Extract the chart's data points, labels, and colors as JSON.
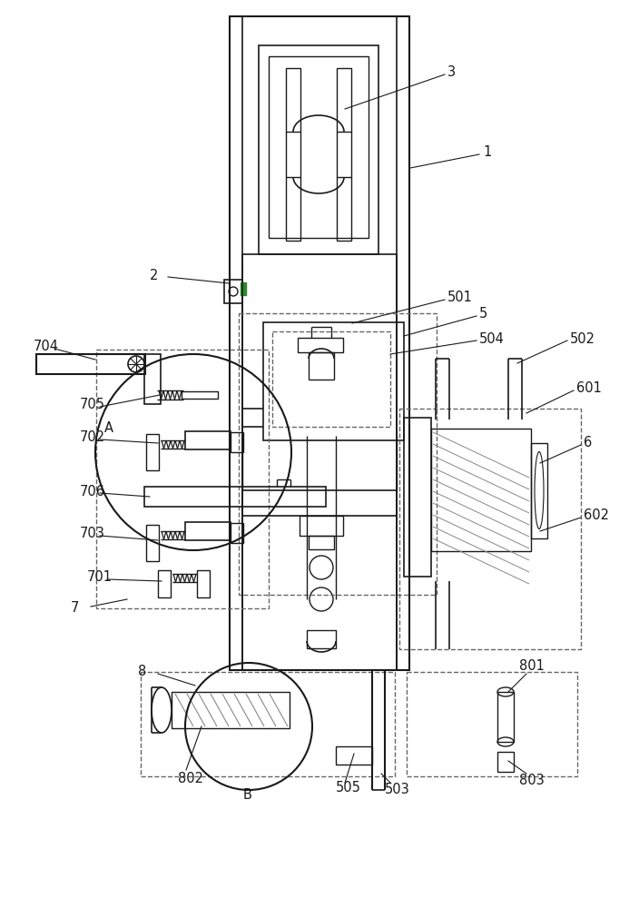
{
  "bg_color": "#ffffff",
  "line_color": "#1a1a1a",
  "green_color": "#2d8a2d",
  "dashed_color": "#666666",
  "label_color": "#1a1a1a",
  "figsize": [
    7.04,
    10.0
  ],
  "dpi": 100
}
